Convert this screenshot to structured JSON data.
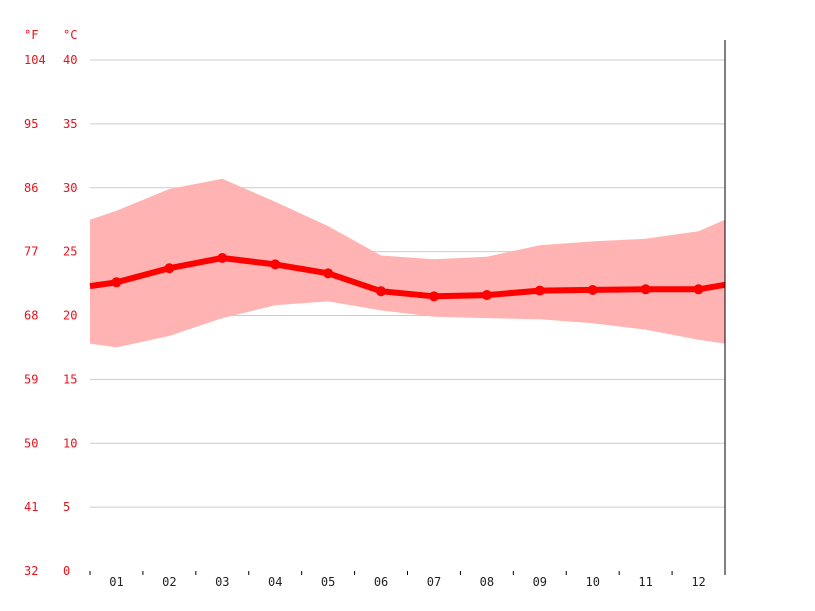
{
  "chart_data": {
    "type": "line",
    "categories": [
      "01",
      "02",
      "03",
      "04",
      "05",
      "06",
      "07",
      "08",
      "09",
      "10",
      "11",
      "12"
    ],
    "series": [
      {
        "name": "",
        "role": "mean",
        "values": [
          22.6,
          23.7,
          24.5,
          24.0,
          23.3,
          21.9,
          21.5,
          21.6,
          21.95,
          22.0,
          22.05,
          22.05
        ]
      },
      {
        "name": "",
        "role": "max",
        "values": [
          28.2,
          29.9,
          30.7,
          28.9,
          27.0,
          24.7,
          24.4,
          24.6,
          25.5,
          25.8,
          26.0,
          26.6
        ]
      },
      {
        "name": "",
        "role": "min",
        "values": [
          17.5,
          18.4,
          19.8,
          20.8,
          21.1,
          20.4,
          19.9,
          19.8,
          19.7,
          19.4,
          18.9,
          18.1
        ]
      }
    ],
    "edges": {
      "mean": [
        22.3,
        22.4
      ],
      "max": [
        27.5,
        27.5
      ],
      "min": [
        17.8,
        17.8
      ]
    },
    "ylim": [
      0,
      40
    ],
    "ylabel_c": "°C",
    "ylabel_f": "°F",
    "yticks_c": [
      "0",
      "5",
      "10",
      "15",
      "20",
      "25",
      "30",
      "35",
      "40"
    ],
    "yticks_f": [
      "32",
      "41",
      "50",
      "59",
      "68",
      "77",
      "86",
      "95",
      "104"
    ],
    "grid": true,
    "colors": {
      "line": "#ff0000",
      "band": "#ffb3b3",
      "grid": "#cccccc",
      "axis_text": "#e8131c",
      "tick_text": "#222222"
    }
  }
}
